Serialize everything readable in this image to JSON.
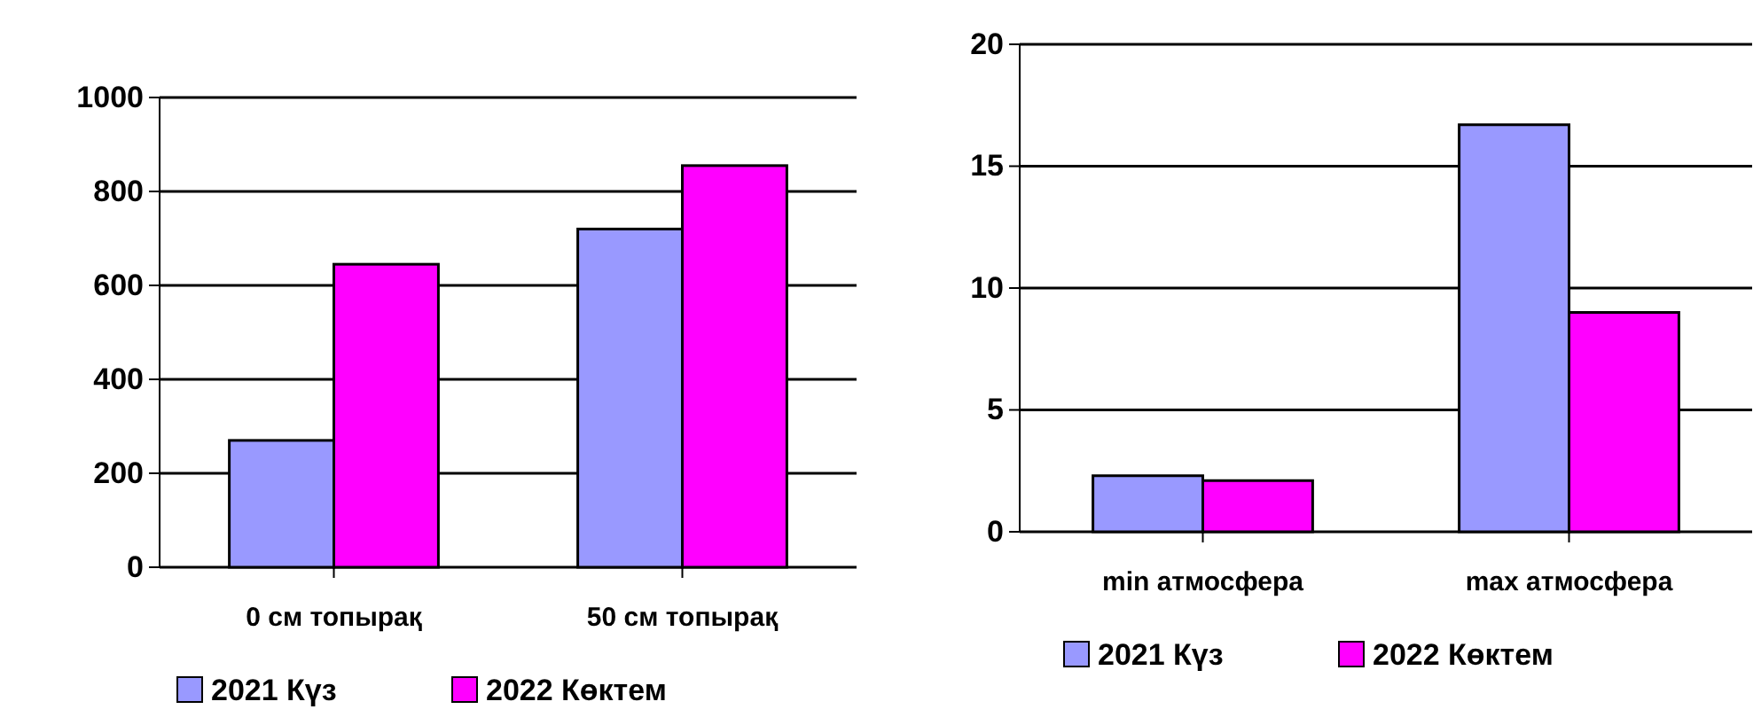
{
  "chart_data": [
    {
      "type": "bar",
      "categories": [
        "0 см топырақ",
        "50 см топырақ"
      ],
      "series": [
        {
          "name": "2021 Күз",
          "color": "#9999ff",
          "values": [
            270,
            720
          ]
        },
        {
          "name": "2022 Көктем",
          "color": "#ff00ff",
          "values": [
            645,
            855
          ]
        }
      ],
      "ylim": [
        0,
        1000
      ],
      "yticks": [
        0,
        200,
        400,
        600,
        800,
        1000
      ],
      "grid": "y",
      "legend": "bottom"
    },
    {
      "type": "bar",
      "categories": [
        "min атмосфера",
        "max атмосфера"
      ],
      "series": [
        {
          "name": "2021 Күз",
          "color": "#9999ff",
          "values": [
            2.3,
            16.7
          ]
        },
        {
          "name": "2022 Көктем",
          "color": "#ff00ff",
          "values": [
            2.1,
            9.0
          ]
        }
      ],
      "ylim": [
        0,
        20
      ],
      "yticks": [
        0,
        5,
        10,
        15,
        20
      ],
      "grid": "y",
      "legend": "bottom"
    }
  ]
}
